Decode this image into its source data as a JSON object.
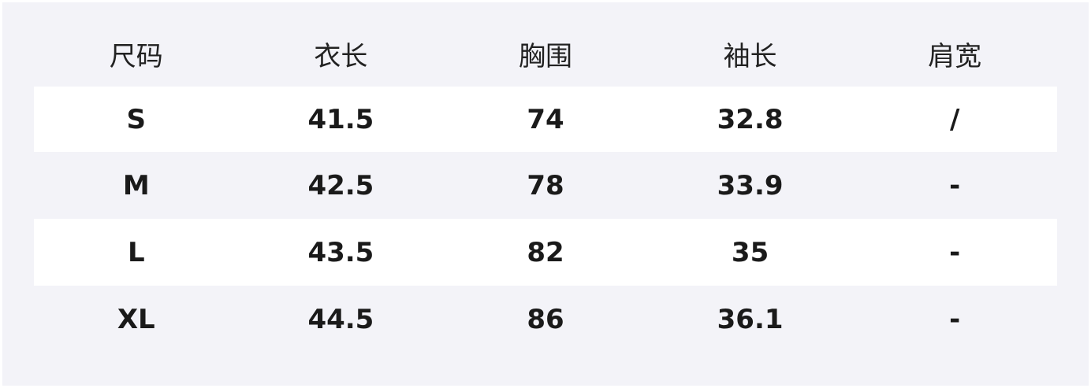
{
  "headers": [
    "尺码",
    "衣长",
    "胸围",
    "袖长",
    "肩宽"
  ],
  "rows": [
    [
      "S",
      "41.5",
      "74",
      "32.8",
      "/"
    ],
    [
      "M",
      "42.5",
      "78",
      "33.9",
      "-"
    ],
    [
      "L",
      "43.5",
      "82",
      "35",
      "-"
    ],
    [
      "XL",
      "44.5",
      "86",
      "36.1",
      "-"
    ]
  ],
  "colors": {
    "background": "#f3f3f8",
    "stripe": "#ffffff",
    "text": "#1a1a1a"
  }
}
